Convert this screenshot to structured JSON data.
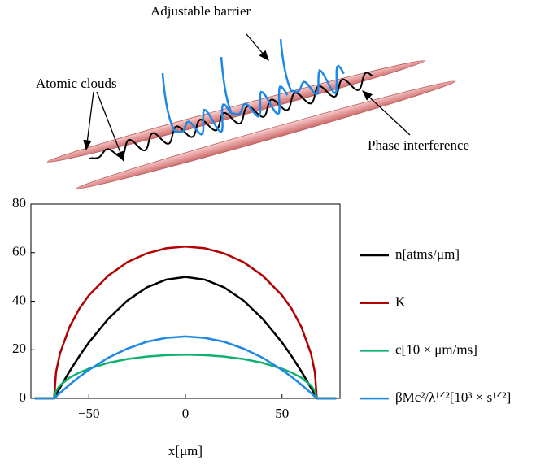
{
  "diagram": {
    "labels": [
      "Adjustable barrier",
      "Atomic clouds",
      "Phase interference"
    ]
  },
  "chart_data": {
    "type": "line",
    "x_label": "x[μm]",
    "x": [
      -78,
      -68,
      -67,
      -65,
      -60,
      -55,
      -50,
      -40,
      -30,
      -20,
      -10,
      0,
      10,
      20,
      30,
      40,
      50,
      55,
      60,
      65,
      67,
      68,
      78
    ],
    "series": [
      {
        "name": "n[atms/μm]",
        "color": "#000000",
        "values": [
          0,
          0,
          1.5,
          4.3,
          11.1,
          17.3,
          23.0,
          32.7,
          40.3,
          45.7,
          48.9,
          50,
          48.9,
          45.7,
          40.3,
          32.7,
          23.0,
          17.3,
          11.1,
          4.3,
          1.5,
          0,
          0
        ]
      },
      {
        "name": "K",
        "color": "#b00000",
        "values": [
          0,
          0,
          10.7,
          18.4,
          29.4,
          36.8,
          42.4,
          50.5,
          56.1,
          59.7,
          61.8,
          62.5,
          61.8,
          59.7,
          56.1,
          50.5,
          42.4,
          36.8,
          29.4,
          18.4,
          10.7,
          0,
          0
        ]
      },
      {
        "name": "c[10 × μm/ms]",
        "color": "#10b070",
        "values": [
          0,
          0,
          3.1,
          5.3,
          8.5,
          10.6,
          12.2,
          14.6,
          16.2,
          17.2,
          17.8,
          18,
          17.8,
          17.2,
          16.2,
          14.6,
          12.2,
          10.6,
          8.5,
          5.3,
          3.1,
          0,
          0
        ]
      },
      {
        "name": "βMc²/λ¹ᐟ²[10³ × s¹ᐟ²]",
        "color": "#1e88e5",
        "values": [
          0,
          0,
          0.7,
          2.2,
          5.6,
          8.8,
          11.7,
          16.7,
          20.5,
          23.3,
          24.9,
          25.5,
          24.9,
          23.3,
          20.5,
          16.7,
          11.7,
          8.8,
          5.6,
          2.2,
          0.7,
          0,
          0
        ]
      }
    ],
    "xlim": [
      -80,
      80
    ],
    "xticks": [
      -50,
      0,
      50
    ],
    "ylim": [
      0,
      80
    ],
    "yticks": [
      0,
      20,
      40,
      60,
      80
    ],
    "grid": false,
    "legend": "right"
  }
}
